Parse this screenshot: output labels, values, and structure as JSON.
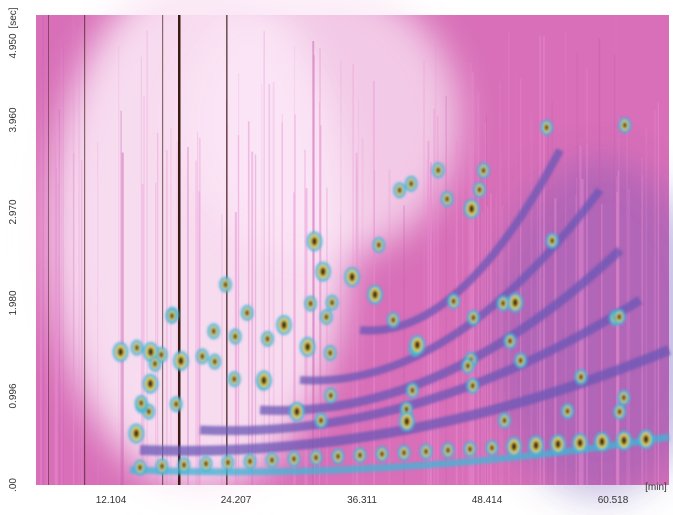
{
  "chart_data": {
    "type": "heatmap",
    "title": "",
    "xlabel": "[min]",
    "ylabel": "[sec]",
    "x_ticks": [
      "12.104",
      "24.207",
      "36.311",
      "48.414",
      "60.518"
    ],
    "x_tick_values": [
      12.104,
      24.207,
      36.311,
      48.414,
      60.518
    ],
    "xlim": [
      0.0,
      66.5
    ],
    "y_ticks": [
      ".00",
      "0.996",
      "1.980",
      "2.970",
      "3.960",
      "4.950"
    ],
    "y_tick_values": [
      0.0,
      0.996,
      1.98,
      2.97,
      3.96,
      4.95
    ],
    "ylim": [
      -0.15,
      5.0
    ],
    "y_unit_label": "[sec]",
    "colormap": [
      "#fbe7f5",
      "#e88bd0",
      "#c55aad",
      "#6a55b5",
      "#3fb7d6",
      "#39d0c5",
      "#f0d040",
      "#3a1a12"
    ],
    "background_color": "#d86fb8",
    "grid": false
  }
}
